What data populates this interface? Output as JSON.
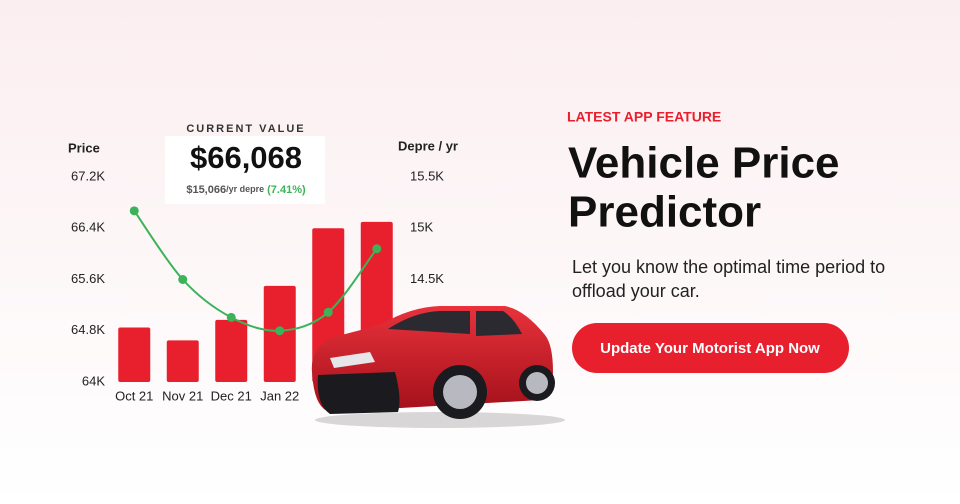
{
  "chart_data": {
    "type": "combo",
    "ylabel": "Price",
    "y2label": "Depre / yr",
    "categories": [
      "Oct 21",
      "Nov 21",
      "Dec 21",
      "Jan 22",
      null,
      null
    ],
    "series": [
      {
        "type": "bar",
        "color": "#e8202e",
        "values": [
          64850,
          64650,
          64970,
          65500,
          66400,
          66500
        ]
      },
      {
        "type": "line",
        "axis": "y2",
        "color": "#3cb35a",
        "values": [
          15170,
          14500,
          14130,
          14000,
          14180,
          14800
        ]
      }
    ],
    "ylim": [
      64000,
      67200
    ],
    "yticks": [
      {
        "value": 64000,
        "label": "64K"
      },
      {
        "value": 64800,
        "label": "64.8K"
      },
      {
        "value": 65600,
        "label": "65.6K"
      },
      {
        "value": 66400,
        "label": "66.4K"
      },
      {
        "value": 67200,
        "label": "67.2K"
      }
    ],
    "y2lim": [
      13500,
      15500
    ],
    "y2ticks": [
      {
        "value": 14500,
        "label": "14.5K"
      },
      {
        "value": 15000,
        "label": "15K"
      },
      {
        "value": 15500,
        "label": "15.5K"
      }
    ]
  },
  "value_box": {
    "heading": "CURRENT VALUE",
    "value": "$66,068",
    "depre": "$15,066",
    "depre_unit": "/yr depre",
    "percent": "(7.41%)"
  },
  "promo": {
    "tag": "LATEST APP FEATURE",
    "title_line1": "Vehicle Price",
    "title_line2": "Predictor",
    "text_line1": "Let you know the optimal time period to",
    "text_line2": "offload your car.",
    "button": "Update Your Motorist App Now"
  }
}
